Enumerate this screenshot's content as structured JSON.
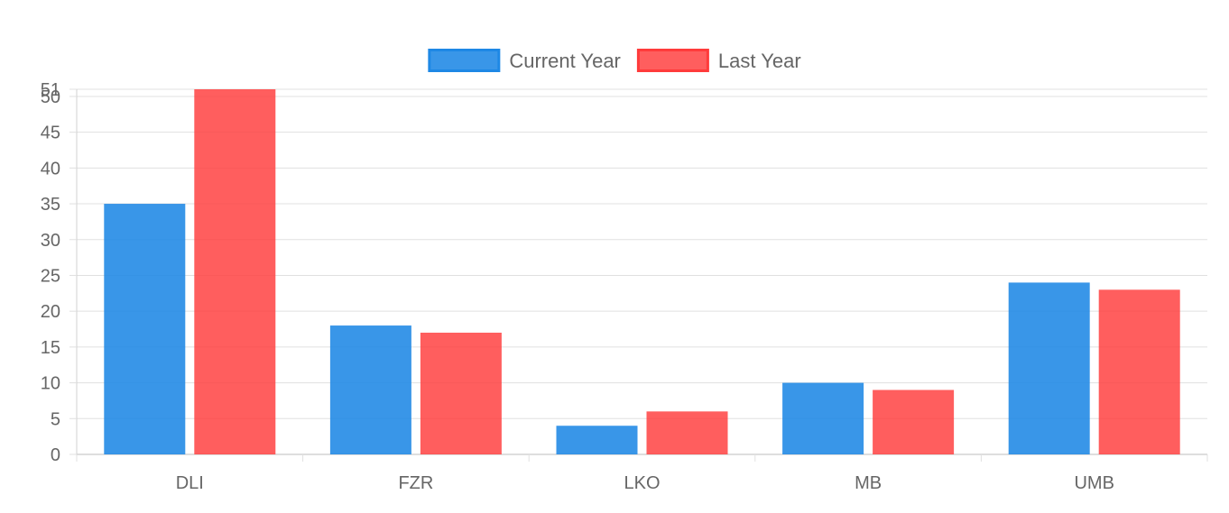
{
  "chart_data": {
    "type": "bar",
    "title": "",
    "xlabel": "",
    "ylabel": "",
    "categories": [
      "DLI",
      "FZR",
      "LKO",
      "MB",
      "UMB"
    ],
    "series": [
      {
        "name": "Current Year",
        "values": [
          35,
          18,
          4,
          10,
          24
        ],
        "color": "#1e88e5",
        "fill": "rgba(30,136,229,0.88)"
      },
      {
        "name": "Last Year",
        "values": [
          51,
          17,
          6,
          9,
          23
        ],
        "color": "#ff3b3b",
        "fill": "rgba(255,59,59,0.82)"
      }
    ],
    "ylim": [
      0,
      51
    ],
    "yticks": [
      0,
      5,
      10,
      15,
      20,
      25,
      30,
      35,
      40,
      45,
      50,
      51
    ],
    "grid": true,
    "legend_position": "top-center"
  }
}
